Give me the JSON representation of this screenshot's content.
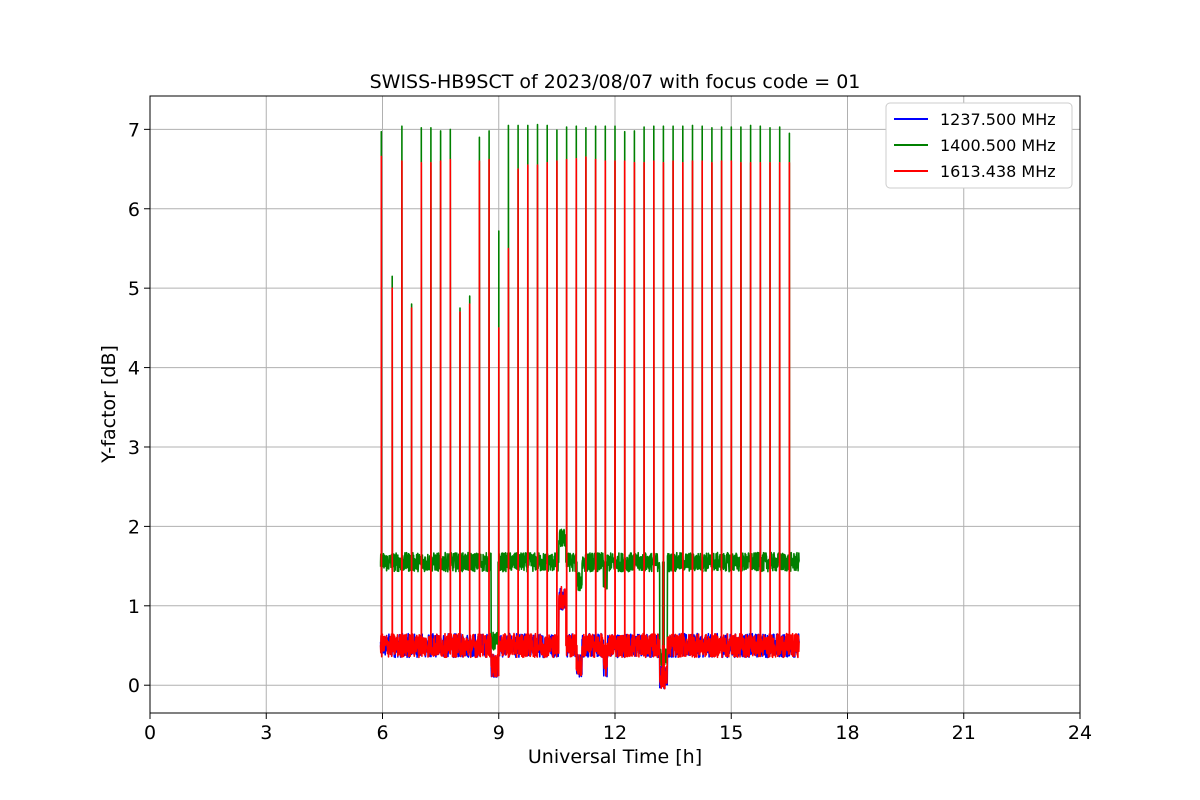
{
  "chart_data": {
    "type": "line",
    "title": "SWISS-HB9SCT of 2023/08/07 with focus code = 01",
    "xlabel": "Universal Time [h]",
    "ylabel": "Y-factor [dB]",
    "xlim": [
      0,
      24
    ],
    "ylim": [
      -0.35,
      7.42
    ],
    "xticks": [
      0,
      3,
      6,
      9,
      12,
      15,
      18,
      21,
      24
    ],
    "xtick_labels": [
      "0",
      "3",
      "6",
      "9",
      "12",
      "15",
      "18",
      "21",
      "24"
    ],
    "yticks": [
      0,
      1,
      2,
      3,
      4,
      5,
      6,
      7
    ],
    "ytick_labels": [
      "0",
      "1",
      "2",
      "3",
      "4",
      "5",
      "6",
      "7"
    ],
    "grid": true,
    "legend_position": "top-right",
    "x_range_of_data": [
      5.95,
      16.75
    ],
    "calibration_peak_times": [
      5.97,
      6.25,
      6.5,
      6.75,
      7.0,
      7.25,
      7.5,
      7.75,
      8.0,
      8.25,
      8.5,
      8.75,
      9.0,
      9.25,
      9.5,
      9.75,
      10.0,
      10.25,
      10.5,
      10.75,
      11.0,
      11.25,
      11.5,
      11.75,
      12.0,
      12.25,
      12.5,
      12.75,
      13.0,
      13.25,
      13.5,
      13.75,
      14.0,
      14.25,
      14.5,
      14.75,
      15.0,
      15.25,
      15.5,
      15.75,
      16.0,
      16.25,
      16.5
    ],
    "series": [
      {
        "name": "1237.500 MHz",
        "color": "#0000ff",
        "baseline": 0.5,
        "noise": 0.15
      },
      {
        "name": "1400.500 MHz",
        "color": "#008000",
        "baseline": 1.55,
        "noise": 0.12,
        "peak_values": [
          6.97,
          5.15,
          7.04,
          4.8,
          7.02,
          7.02,
          6.98,
          7.0,
          4.75,
          4.9,
          6.9,
          6.98,
          5.72,
          7.05,
          7.05,
          7.05,
          7.06,
          7.05,
          6.99,
          7.03,
          7.04,
          7.02,
          7.04,
          7.04,
          7.04,
          6.97,
          6.98,
          7.03,
          7.04,
          7.04,
          7.04,
          7.04,
          7.05,
          7.04,
          7.02,
          7.03,
          7.03,
          7.03,
          7.05,
          7.04,
          7.02,
          7.03,
          6.95
        ]
      },
      {
        "name": "1613.438 MHz",
        "color": "#ff0000",
        "baseline": 0.5,
        "noise": 0.15,
        "peak_values": [
          6.66,
          5.0,
          6.6,
          4.75,
          6.58,
          6.58,
          6.6,
          6.62,
          4.7,
          4.8,
          6.6,
          6.62,
          4.5,
          5.5,
          6.5,
          6.55,
          6.55,
          6.58,
          6.6,
          6.62,
          6.63,
          6.65,
          6.62,
          6.6,
          6.6,
          6.6,
          6.58,
          6.58,
          6.6,
          6.58,
          6.6,
          6.58,
          6.6,
          6.6,
          6.58,
          6.6,
          6.6,
          6.58,
          6.58,
          6.58,
          6.58,
          6.58,
          6.58
        ]
      }
    ]
  }
}
